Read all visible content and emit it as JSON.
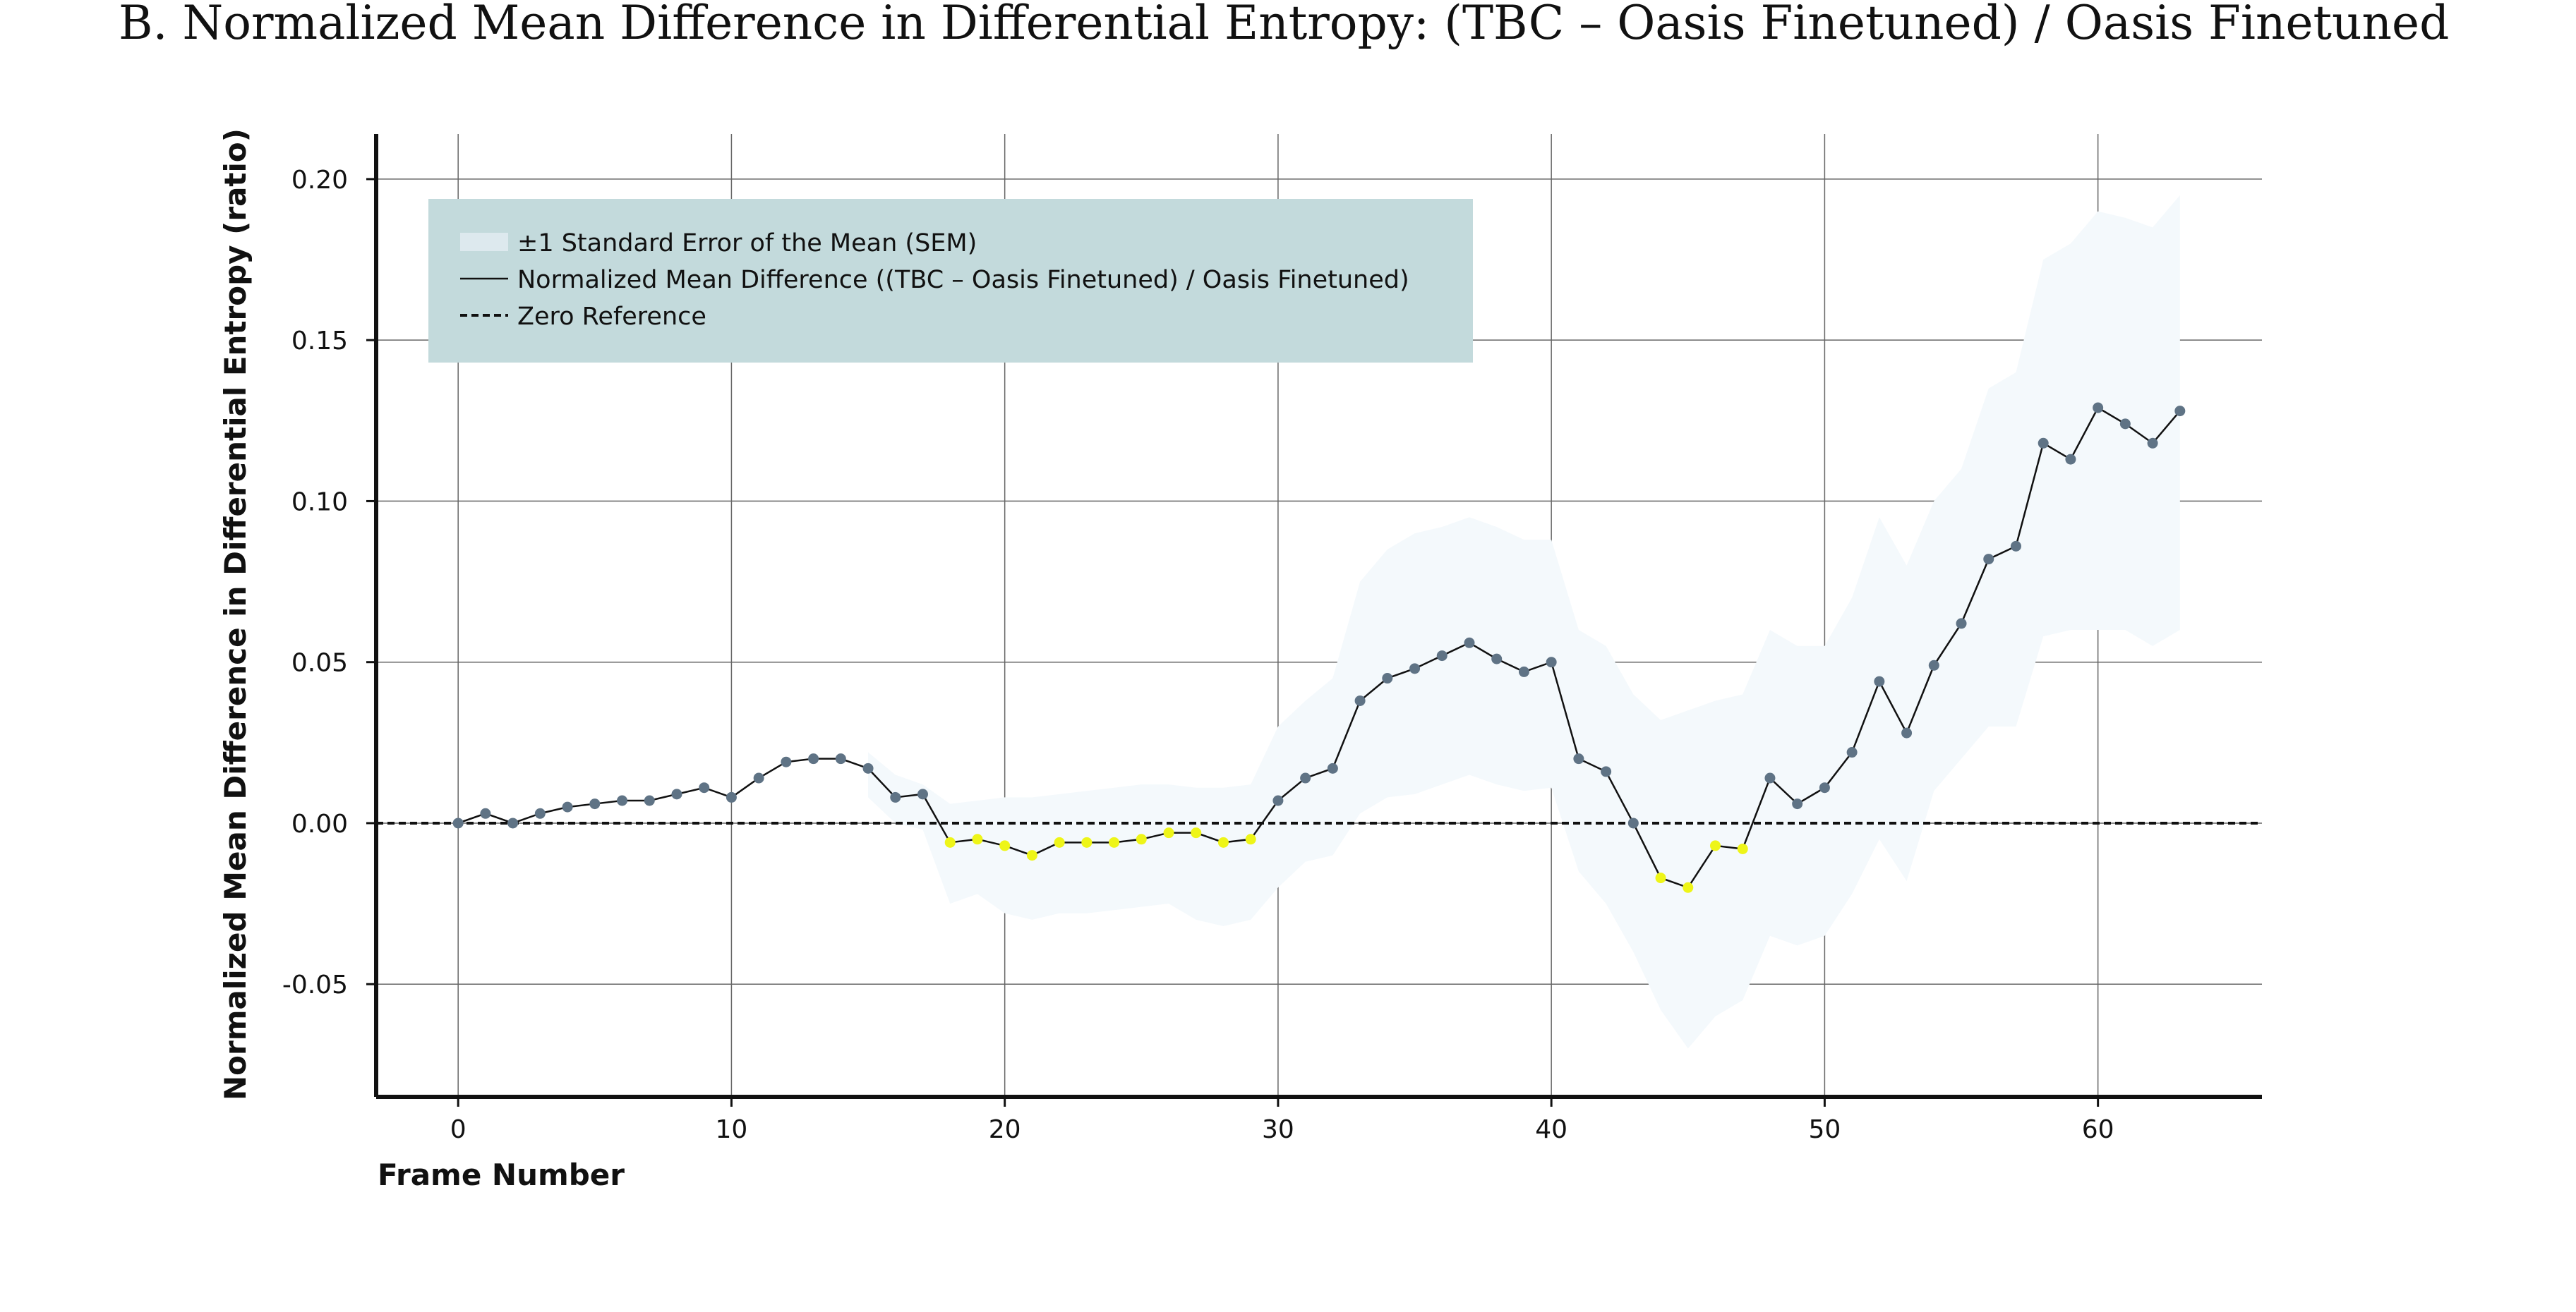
{
  "chart_data": {
    "type": "line",
    "title": "B. Normalized Mean Difference in Differential Entropy: (TBC –  Oasis Finetuned) /  Oasis Finetuned",
    "xlabel": "Frame Number",
    "ylabel": "Normalized Mean Difference in Differential Entropy (ratio)",
    "xlim": [
      -3,
      66
    ],
    "ylim": [
      -0.085,
      0.214
    ],
    "x_ticks": [
      0,
      10,
      20,
      30,
      40,
      50,
      60
    ],
    "y_ticks": [
      -0.05,
      0.0,
      0.05,
      0.1,
      0.15,
      0.2
    ],
    "x_tick_labels": [
      "0",
      "10",
      "20",
      "30",
      "40",
      "50",
      "60"
    ],
    "y_tick_labels": [
      "-0.05",
      "0.00",
      "0.05",
      "0.10",
      "0.15",
      "0.20"
    ],
    "grid": true,
    "legend_position": "top-left",
    "legend": [
      {
        "label": "±1 Standard Error of the Mean (SEM)",
        "kind": "band"
      },
      {
        "label": "Normalized Mean Difference ((TBC – Oasis Finetuned) / Oasis Finetuned)",
        "kind": "line"
      },
      {
        "label": "Zero Reference",
        "kind": "dashed"
      }
    ],
    "colors": {
      "line": "#111111",
      "positive_marker": "#5f7385",
      "negative_marker": "#eef518",
      "sem_band": "#f4f9fc",
      "legend_bg": "#c3dadc",
      "legend_band_swatch": "#dde9ee",
      "grid": "#666666",
      "axis": "#111111"
    },
    "x": [
      0,
      1,
      2,
      3,
      4,
      5,
      6,
      7,
      8,
      9,
      10,
      11,
      12,
      13,
      14,
      15,
      16,
      17,
      18,
      19,
      20,
      21,
      22,
      23,
      24,
      25,
      26,
      27,
      28,
      29,
      30,
      31,
      32,
      33,
      34,
      35,
      36,
      37,
      38,
      39,
      40,
      41,
      42,
      43,
      44,
      45,
      46,
      47,
      48,
      49,
      50,
      51,
      52,
      53,
      54,
      55,
      56,
      57,
      58,
      59,
      60,
      61,
      62,
      63
    ],
    "series": [
      {
        "name": "Normalized Mean Difference ((TBC – Oasis Finetuned) / Oasis Finetuned)",
        "values": [
          0.0,
          0.003,
          0.0,
          0.003,
          0.005,
          0.006,
          0.007,
          0.007,
          0.009,
          0.011,
          0.008,
          0.014,
          0.019,
          0.02,
          0.02,
          0.017,
          0.008,
          0.009,
          -0.006,
          -0.005,
          -0.007,
          -0.01,
          -0.006,
          -0.006,
          -0.006,
          -0.005,
          -0.003,
          -0.003,
          -0.006,
          -0.005,
          0.007,
          0.014,
          0.017,
          0.038,
          0.045,
          0.048,
          0.052,
          0.056,
          0.051,
          0.047,
          0.05,
          0.02,
          0.016,
          0.0,
          -0.017,
          -0.02,
          -0.007,
          -0.008,
          0.014,
          0.006,
          0.011,
          0.022,
          0.044,
          0.028,
          0.049,
          0.062,
          0.082,
          0.086,
          0.118,
          0.113,
          0.129,
          0.124,
          0.118,
          0.128
        ]
      }
    ],
    "sem_band": {
      "x": [
        15,
        16,
        17,
        18,
        19,
        20,
        21,
        22,
        23,
        24,
        25,
        26,
        27,
        28,
        29,
        30,
        31,
        32,
        33,
        34,
        35,
        36,
        37,
        38,
        39,
        40,
        41,
        42,
        43,
        44,
        45,
        46,
        47,
        48,
        49,
        50,
        51,
        52,
        53,
        54,
        55,
        56,
        57,
        58,
        59,
        60,
        61,
        62,
        63
      ],
      "lower": [
        0.008,
        0.0,
        -0.002,
        -0.025,
        -0.022,
        -0.028,
        -0.03,
        -0.028,
        -0.028,
        -0.027,
        -0.026,
        -0.025,
        -0.03,
        -0.032,
        -0.03,
        -0.02,
        -0.012,
        -0.01,
        0.003,
        0.008,
        0.009,
        0.012,
        0.015,
        0.012,
        0.01,
        0.011,
        -0.015,
        -0.025,
        -0.04,
        -0.058,
        -0.07,
        -0.06,
        -0.055,
        -0.035,
        -0.038,
        -0.035,
        -0.022,
        -0.005,
        -0.018,
        0.01,
        0.02,
        0.03,
        0.03,
        0.058,
        0.06,
        0.06,
        0.06,
        0.055,
        0.06
      ],
      "upper": [
        0.022,
        0.015,
        0.012,
        0.006,
        0.007,
        0.008,
        0.008,
        0.009,
        0.01,
        0.011,
        0.012,
        0.012,
        0.011,
        0.011,
        0.012,
        0.03,
        0.038,
        0.045,
        0.075,
        0.085,
        0.09,
        0.092,
        0.095,
        0.092,
        0.088,
        0.088,
        0.06,
        0.055,
        0.04,
        0.032,
        0.035,
        0.038,
        0.04,
        0.06,
        0.055,
        0.055,
        0.07,
        0.095,
        0.08,
        0.1,
        0.11,
        0.135,
        0.14,
        0.175,
        0.18,
        0.19,
        0.188,
        0.185,
        0.195
      ]
    }
  }
}
